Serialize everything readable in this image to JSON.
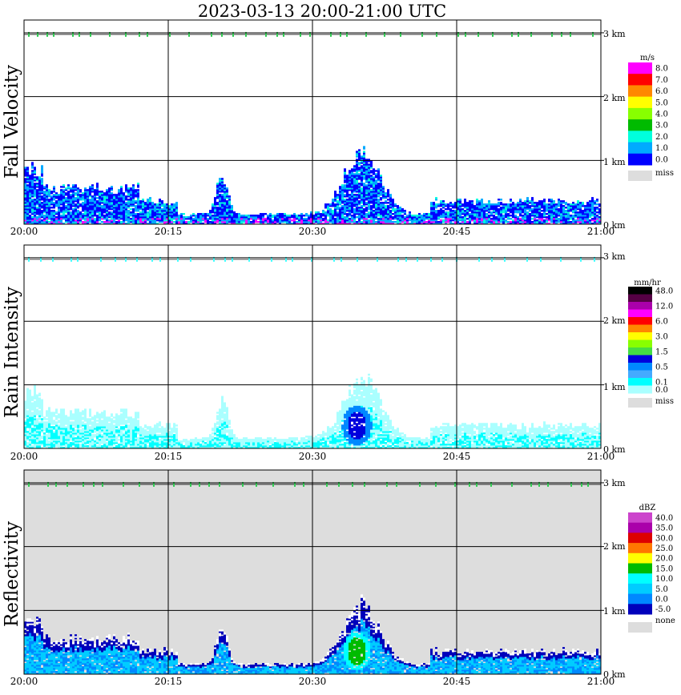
{
  "chart_data": {
    "type": "heatmap",
    "title": "2023-03-13   20:00-21:00 UTC",
    "x_tick_labels": [
      "20:00",
      "20:15",
      "20:30",
      "20:45",
      "21:00"
    ],
    "x_range_utc": [
      "20:00",
      "21:00"
    ],
    "y_tick_labels": [
      "0 km",
      "1 km",
      "2 km",
      "3 km"
    ],
    "ylim_km": [
      0,
      3.2
    ],
    "grid": true,
    "panels": [
      {
        "id": "fall-velocity",
        "ylabel": "Fall Velocity",
        "unit": "m/s",
        "background": "#ffffff",
        "bands": [
          {
            "label": "8.0",
            "color": "#ff00ff"
          },
          {
            "label": "7.0",
            "color": "#ff0000"
          },
          {
            "label": "6.0",
            "color": "#ff8800"
          },
          {
            "label": "5.0",
            "color": "#ffff00"
          },
          {
            "label": "4.0",
            "color": "#88ff00"
          },
          {
            "label": "3.0",
            "color": "#00bb00"
          },
          {
            "label": "2.0",
            "color": "#00ffdd"
          },
          {
            "label": "1.0",
            "color": "#00aaff"
          },
          {
            "label": "0.0",
            "color": "#0000ff"
          }
        ],
        "missing_label": "miss",
        "missing_color": "#dddddd"
      },
      {
        "id": "rain-intensity",
        "ylabel": "Rain Intensity",
        "unit": "mm/hr",
        "background": "#ffffff",
        "bands": [
          {
            "label": "48.0",
            "color": "#000000"
          },
          {
            "label": "",
            "color": "#550044"
          },
          {
            "label": "12.0",
            "color": "#aa00aa"
          },
          {
            "label": "",
            "color": "#ff00ff"
          },
          {
            "label": "6.0",
            "color": "#ff0000"
          },
          {
            "label": "",
            "color": "#ff8800"
          },
          {
            "label": "3.0",
            "color": "#ffff00"
          },
          {
            "label": "",
            "color": "#88ff00"
          },
          {
            "label": "1.5",
            "color": "#44dd44"
          },
          {
            "label": "",
            "color": "#0000dd"
          },
          {
            "label": "0.5",
            "color": "#0088ff"
          },
          {
            "label": "",
            "color": "#44aaff"
          },
          {
            "label": "0.1",
            "color": "#00ffff"
          },
          {
            "label": "0.0",
            "color": "#aaffff"
          }
        ],
        "missing_label": "miss",
        "missing_color": "#dddddd"
      },
      {
        "id": "reflectivity",
        "ylabel": "Reflectivity",
        "unit": "dBZ",
        "background": "#dddddd",
        "bands": [
          {
            "label": "40.0",
            "color": "#cc44cc"
          },
          {
            "label": "35.0",
            "color": "#aa00aa"
          },
          {
            "label": "30.0",
            "color": "#dd0000"
          },
          {
            "label": "25.0",
            "color": "#ff7700"
          },
          {
            "label": "20.0",
            "color": "#ffff00"
          },
          {
            "label": "15.0",
            "color": "#00bb00"
          },
          {
            "label": "10.0",
            "color": "#00ffff"
          },
          {
            "label": "5.0",
            "color": "#00ccff"
          },
          {
            "label": "0.0",
            "color": "#0088ff"
          },
          {
            "label": "-5.0",
            "color": "#0000bb"
          }
        ],
        "missing_label": "none",
        "missing_color": "#dddddd"
      }
    ]
  }
}
